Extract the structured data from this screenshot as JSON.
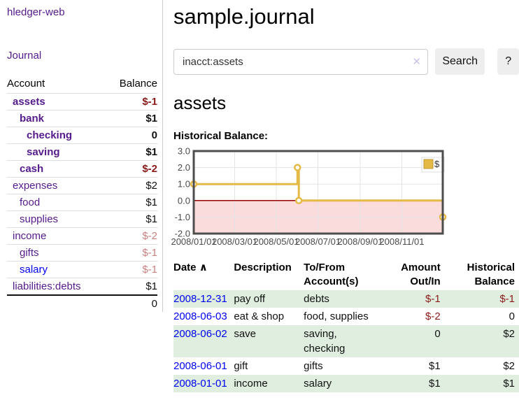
{
  "app": {
    "brand": "hledger-web",
    "nav_journal": "Journal"
  },
  "sidebar": {
    "header": {
      "account": "Account",
      "balance": "Balance"
    },
    "accounts": [
      {
        "name": "assets",
        "balance": "$-1",
        "level": 0,
        "bold": true,
        "visited": true,
        "balance_tone": "neg-strong"
      },
      {
        "name": "bank",
        "balance": "$1",
        "level": 1,
        "bold": true,
        "visited": true,
        "balance_tone": "pos"
      },
      {
        "name": "checking",
        "balance": "0",
        "level": 2,
        "bold": true,
        "visited": true,
        "balance_tone": "pos"
      },
      {
        "name": "saving",
        "balance": "$1",
        "level": 2,
        "bold": true,
        "visited": true,
        "balance_tone": "pos"
      },
      {
        "name": "cash",
        "balance": "$-2",
        "level": 1,
        "bold": true,
        "visited": true,
        "balance_tone": "neg-strong"
      },
      {
        "name": "expenses",
        "balance": "$2",
        "level": 0,
        "bold": false,
        "visited": true,
        "balance_tone": "pos"
      },
      {
        "name": "food",
        "balance": "$1",
        "level": 1,
        "bold": false,
        "visited": true,
        "balance_tone": "pos"
      },
      {
        "name": "supplies",
        "balance": "$1",
        "level": 1,
        "bold": false,
        "visited": true,
        "balance_tone": "pos"
      },
      {
        "name": "income",
        "balance": "$-2",
        "level": 0,
        "bold": false,
        "visited": true,
        "balance_tone": "neg-soft"
      },
      {
        "name": "gifts",
        "balance": "$-1",
        "level": 1,
        "bold": false,
        "visited": true,
        "balance_tone": "neg-soft"
      },
      {
        "name": "salary",
        "balance": "$-1",
        "level": 1,
        "bold": false,
        "visited": false,
        "balance_tone": "neg-soft"
      },
      {
        "name": "liabilities:debts",
        "balance": "$1",
        "level": 0,
        "bold": false,
        "visited": true,
        "balance_tone": "pos"
      }
    ],
    "total": "0"
  },
  "main": {
    "title": "sample.journal",
    "search": {
      "value": "inacct:assets",
      "clear_icon": "✕",
      "button_label": "Search",
      "help_label": "?"
    },
    "account_heading": "assets",
    "chart_label": "Historical Balance:"
  },
  "register": {
    "headers": {
      "date": "Date",
      "sort_indicator": "∧",
      "description": "Description",
      "accounts": "To/From Account(s)",
      "amount": "Amount Out/In",
      "balance": "Historical Balance"
    },
    "rows": [
      {
        "date": "2008-12-31",
        "description": "pay off",
        "accounts": "debts",
        "amount": "$-1",
        "amount_tone": "neg",
        "balance": "$-1",
        "balance_tone": "neg",
        "shaded": true
      },
      {
        "date": "2008-06-03",
        "description": "eat & shop",
        "accounts": "food, supplies",
        "amount": "$-2",
        "amount_tone": "neg",
        "balance": "0",
        "balance_tone": "pos",
        "shaded": false
      },
      {
        "date": "2008-06-02",
        "description": "save",
        "accounts": "saving, checking",
        "amount": "0",
        "amount_tone": "pos",
        "balance": "$2",
        "balance_tone": "pos",
        "shaded": true
      },
      {
        "date": "2008-06-01",
        "description": "gift",
        "accounts": "gifts",
        "amount": "$1",
        "amount_tone": "pos",
        "balance": "$2",
        "balance_tone": "pos",
        "shaded": false
      },
      {
        "date": "2008-01-01",
        "description": "income",
        "accounts": "salary",
        "amount": "$1",
        "amount_tone": "pos",
        "balance": "$1",
        "balance_tone": "pos",
        "shaded": true
      }
    ]
  },
  "chart_data": {
    "type": "line",
    "title": "Historical Balance:",
    "step": true,
    "series": [
      {
        "name": "$",
        "points": [
          {
            "date": "2008-01-01",
            "day": 1,
            "value": 1
          },
          {
            "date": "2008-06-01",
            "day": 153,
            "value": 2
          },
          {
            "date": "2008-06-03",
            "day": 155,
            "value": 0
          },
          {
            "date": "2008-12-31",
            "day": 366,
            "value": -1
          }
        ]
      }
    ],
    "x_ticks": [
      {
        "label": "2008/01/01",
        "day": 1
      },
      {
        "label": "2008/03/01",
        "day": 61
      },
      {
        "label": "2008/05/01",
        "day": 122
      },
      {
        "label": "2008/07/01",
        "day": 183
      },
      {
        "label": "2008/09/01",
        "day": 245
      },
      {
        "label": "2008/11/01",
        "day": 306
      }
    ],
    "y_ticks": [
      "3.0",
      "2.0",
      "1.0",
      "0.0",
      "-1.0",
      "-2.0"
    ],
    "ylim": [
      -2,
      3
    ],
    "xlim_days": [
      1,
      366
    ],
    "legend": {
      "label": "$",
      "position": "top-right"
    },
    "grid": true,
    "negative_region_shaded": true
  },
  "colors": {
    "link_purple": "#551A8B",
    "link_blue": "#0000EE",
    "negative_strong": "#8B1A1A",
    "negative_soft": "#C9807F",
    "row_green": "#DFEEDF",
    "chart_line": "#E5B946",
    "chart_line_edge": "#BE9A34",
    "chart_negative_fill": "#FADCDC",
    "chart_zero_line": "#990000",
    "chart_border": "#4D4D4D",
    "chart_grid": "#E3E3E3",
    "chart_tick_text": "#4A4A4A"
  }
}
